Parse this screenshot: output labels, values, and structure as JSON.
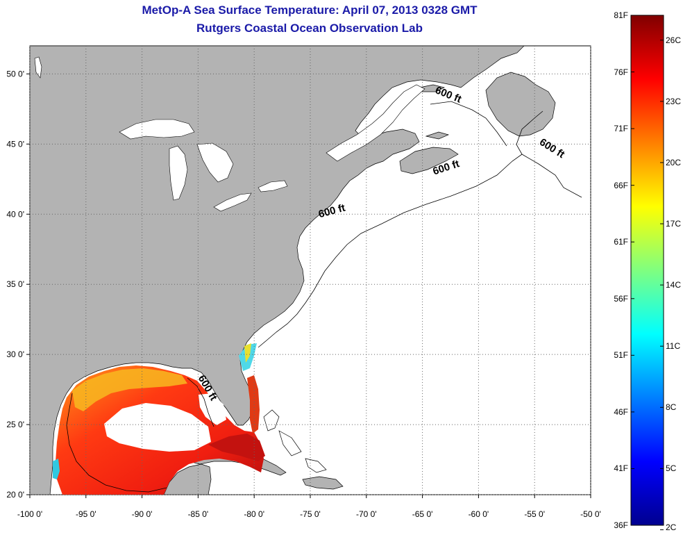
{
  "header": {
    "title": "MetOp-A Sea Surface Temperature:  April 07, 2013 0328 GMT",
    "subtitle": "Rutgers Coastal Ocean Observation Lab"
  },
  "map": {
    "lon_range": [
      -100,
      -50
    ],
    "lat_range": [
      20,
      52
    ],
    "x_ticks": [
      {
        "value": -100,
        "label": "-100 0'"
      },
      {
        "value": -95,
        "label": "-95 0'"
      },
      {
        "value": -90,
        "label": "-90 0'"
      },
      {
        "value": -85,
        "label": "-85 0'"
      },
      {
        "value": -80,
        "label": "-80 0'"
      },
      {
        "value": -75,
        "label": "-75 0'"
      },
      {
        "value": -70,
        "label": "-70 0'"
      },
      {
        "value": -65,
        "label": "-65 0'"
      },
      {
        "value": -60,
        "label": "-60 0'"
      },
      {
        "value": -55,
        "label": "-55 0'"
      },
      {
        "value": -50,
        "label": "-50 0'"
      }
    ],
    "y_ticks": [
      {
        "value": 50,
        "label": "50 0'"
      },
      {
        "value": 45,
        "label": "45 0'"
      },
      {
        "value": 40,
        "label": "40 0'"
      },
      {
        "value": 35,
        "label": "35 0'"
      },
      {
        "value": 30,
        "label": "30 0'"
      },
      {
        "value": 25,
        "label": "25 0'"
      },
      {
        "value": 20,
        "label": "20 0'"
      }
    ],
    "contour_labels": [
      {
        "text": "600 ft",
        "lon": -62.8,
        "lat": 48.3,
        "angle": 22
      },
      {
        "text": "600 ft",
        "lon": -53.6,
        "lat": 44.5,
        "angle": 32
      },
      {
        "text": "600 ft",
        "lon": -62.8,
        "lat": 43.1,
        "angle": -18
      },
      {
        "text": "600 ft",
        "lon": -73.0,
        "lat": 40.0,
        "angle": -15
      },
      {
        "text": "600 ft",
        "lon": -84.4,
        "lat": 27.5,
        "angle": 60
      }
    ],
    "colors": {
      "land": "#b3b3b3",
      "water": "#ffffff",
      "grid": "#555555"
    }
  },
  "colorbar": {
    "f_labels": [
      "81F",
      "76F",
      "71F",
      "66F",
      "61F",
      "56F",
      "51F",
      "46F",
      "41F",
      "36F"
    ],
    "c_labels": [
      "26C",
      "23C",
      "20C",
      "17C",
      "14C",
      "11C",
      "8C",
      "5C",
      "2C"
    ],
    "c_values": [
      26,
      23,
      20,
      17,
      14,
      11,
      8,
      5,
      2
    ],
    "range_c": [
      2.22,
      27.22
    ]
  }
}
